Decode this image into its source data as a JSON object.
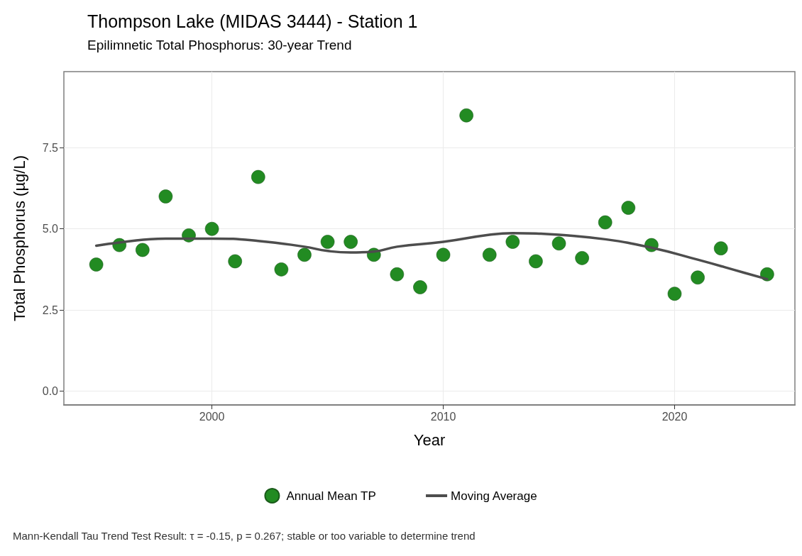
{
  "chart_data": {
    "type": "scatter",
    "title": "Thompson Lake (MIDAS 3444) - Station 1",
    "subtitle": "Epilimnetic Total Phosphorus: 30-year Trend",
    "xlabel": "Year",
    "ylabel": "Total Phosphorus (µg/L)",
    "x": [
      1995,
      1996,
      1997,
      1998,
      1999,
      2000,
      2001,
      2002,
      2003,
      2004,
      2005,
      2006,
      2007,
      2008,
      2009,
      2010,
      2011,
      2012,
      2013,
      2014,
      2015,
      2016,
      2017,
      2018,
      2019,
      2020,
      2021,
      2022,
      2024
    ],
    "series": [
      {
        "name": "Annual Mean TP",
        "color": "#228b22",
        "marker": "circle",
        "values": [
          3.9,
          4.5,
          4.35,
          6.0,
          4.8,
          5.0,
          4.0,
          6.6,
          3.75,
          4.2,
          4.6,
          4.6,
          4.2,
          3.6,
          3.2,
          4.2,
          8.5,
          4.2,
          4.6,
          4.0,
          4.55,
          4.1,
          5.2,
          5.65,
          4.5,
          3.0,
          3.5,
          4.4,
          3.6
        ]
      },
      {
        "name": "Moving Average",
        "type": "line",
        "color": "#4d4d4d",
        "marker": "none",
        "line_style": "solid",
        "x": [
          1995,
          1996,
          1998,
          2000,
          2002,
          2004,
          2005,
          2006,
          2007,
          2008,
          2010,
          2012,
          2013,
          2014,
          2015,
          2017,
          2019,
          2021,
          2023,
          2024
        ],
        "values": [
          4.48,
          4.58,
          4.7,
          4.7,
          4.63,
          4.45,
          4.32,
          4.27,
          4.3,
          4.45,
          4.6,
          4.82,
          4.87,
          4.86,
          4.82,
          4.68,
          4.42,
          4.05,
          3.65,
          3.45
        ]
      }
    ],
    "xlim": [
      1993.6,
      2025.2
    ],
    "ylim": [
      -0.43,
      9.85
    ],
    "xticks": [
      2000,
      2010,
      2020
    ],
    "yticks": [
      {
        "value": 0,
        "label": "0.0"
      },
      {
        "value": 2.5,
        "label": "2.5"
      },
      {
        "value": 5,
        "label": "5.0"
      },
      {
        "value": 7.5,
        "label": "7.5"
      }
    ],
    "grid": true,
    "legend": "bottom",
    "annotations": [
      "Mann-Kendall Tau Trend Test Result: τ = -0.15, p = 0.267; stable or too variable to determine trend"
    ]
  }
}
